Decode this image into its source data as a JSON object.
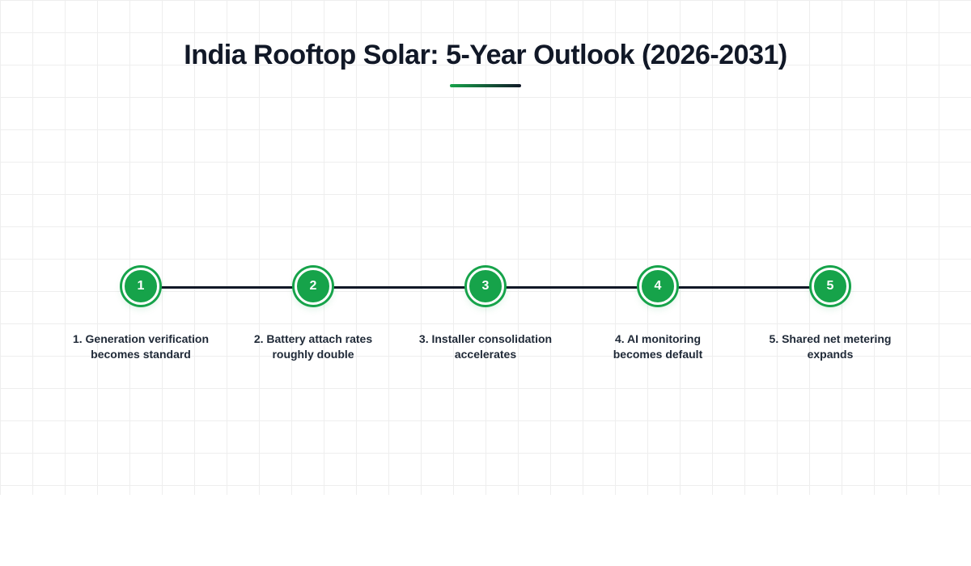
{
  "header": {
    "title": "India Rooftop Solar: 5-Year Outlook (2026-2031)"
  },
  "timeline": {
    "milestones": [
      {
        "number": "1",
        "label": "1. Generation verification\nbecomes standard"
      },
      {
        "number": "2",
        "label": "2. Battery attach rates\nroughly double"
      },
      {
        "number": "3",
        "label": "3. Installer consolidation\naccelerates"
      },
      {
        "number": "4",
        "label": "4. AI monitoring\nbecomes default"
      },
      {
        "number": "5",
        "label": "5. Shared net metering\nexpands"
      }
    ]
  },
  "colors": {
    "accent": "#16a34a",
    "text": "#111827",
    "line": "#111827"
  }
}
